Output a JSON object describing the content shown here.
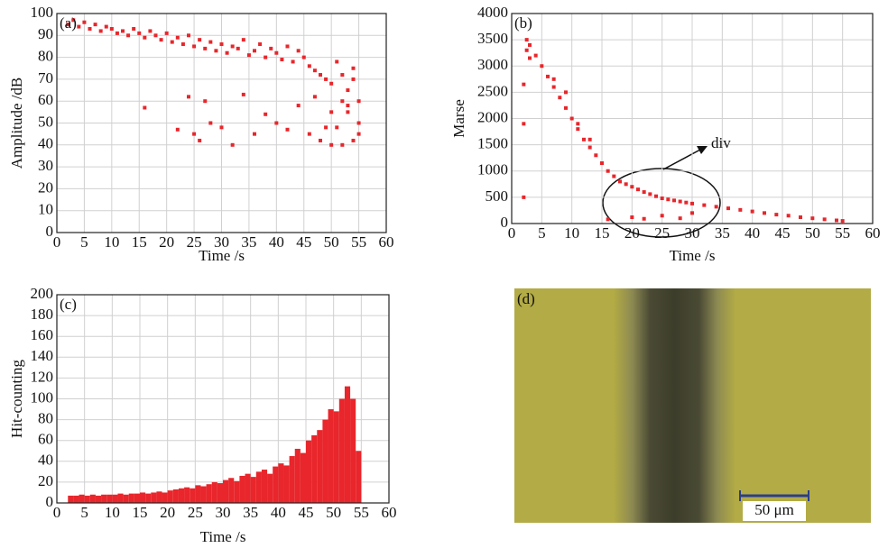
{
  "chart_data": [
    {
      "type": "scatter",
      "panel_label": "(a)",
      "x_label": "Time /s",
      "y_label": "Amplitude /dB",
      "color": "#e8262b",
      "grid": true,
      "x": [
        2,
        3,
        4,
        5,
        6,
        7,
        8,
        9,
        10,
        11,
        12,
        13,
        14,
        15,
        16,
        17,
        18,
        19,
        20,
        21,
        22,
        23,
        24,
        25,
        26,
        27,
        28,
        29,
        30,
        31,
        32,
        33,
        34,
        35,
        36,
        37,
        38,
        39,
        40,
        41,
        42,
        43,
        44,
        45,
        46,
        47,
        48,
        49,
        50,
        51,
        52,
        53,
        54,
        55,
        16,
        22,
        24,
        25,
        26,
        27,
        28,
        30,
        32,
        34,
        36,
        38,
        40,
        42,
        44,
        46,
        48,
        50,
        51,
        52,
        53,
        54,
        55,
        47,
        49,
        50,
        52,
        53,
        54,
        55
      ],
      "values": [
        95,
        97,
        94,
        96,
        93,
        95,
        92,
        94,
        93,
        91,
        92,
        90,
        93,
        91,
        89,
        92,
        90,
        88,
        91,
        87,
        89,
        86,
        90,
        85,
        88,
        84,
        87,
        83,
        86,
        82,
        85,
        84,
        88,
        81,
        83,
        86,
        80,
        84,
        82,
        79,
        85,
        78,
        83,
        80,
        76,
        74,
        72,
        70,
        68,
        78,
        60,
        55,
        70,
        50,
        57,
        47,
        62,
        45,
        42,
        60,
        50,
        48,
        40,
        63,
        45,
        54,
        50,
        47,
        58,
        45,
        42,
        55,
        48,
        40,
        65,
        42,
        45,
        62,
        48,
        40,
        72,
        58,
        75,
        60
      ],
      "xlim": [
        0,
        60
      ],
      "xticks": [
        0,
        5,
        10,
        15,
        20,
        25,
        30,
        35,
        40,
        45,
        50,
        55,
        60
      ],
      "ylim": [
        0,
        100
      ],
      "yticks": [
        0,
        10,
        20,
        30,
        40,
        50,
        60,
        70,
        80,
        90,
        100
      ]
    },
    {
      "type": "scatter",
      "panel_label": "(b)",
      "x_label": "Time /s",
      "y_label": "Marse",
      "color": "#e8262b",
      "grid": true,
      "annotation": "div",
      "x": [
        2.5,
        3,
        4,
        5,
        6,
        7,
        8,
        9,
        10,
        11,
        12,
        13,
        14,
        15,
        16,
        17,
        18,
        19,
        20,
        21,
        22,
        23,
        24,
        25,
        26,
        27,
        28,
        29,
        30,
        32,
        34,
        36,
        38,
        40,
        42,
        44,
        46,
        48,
        50,
        52,
        54,
        55,
        2,
        2,
        2,
        2.5,
        3,
        16,
        20,
        22,
        25,
        28,
        30,
        7,
        9,
        11,
        13
      ],
      "values": [
        3500,
        3400,
        3200,
        3000,
        2800,
        2600,
        2400,
        2200,
        2000,
        1800,
        1600,
        1450,
        1300,
        1150,
        1000,
        900,
        800,
        750,
        700,
        650,
        600,
        560,
        520,
        480,
        460,
        440,
        420,
        400,
        380,
        350,
        320,
        290,
        260,
        230,
        200,
        170,
        150,
        120,
        100,
        80,
        60,
        50,
        500,
        1900,
        2650,
        3300,
        3150,
        80,
        120,
        90,
        150,
        100,
        200,
        2750,
        2500,
        1900,
        1600
      ],
      "xlim": [
        0,
        60
      ],
      "xticks": [
        0,
        5,
        10,
        15,
        20,
        25,
        30,
        35,
        40,
        45,
        50,
        55,
        60
      ],
      "ylim": [
        0,
        4000
      ],
      "yticks": [
        0,
        500,
        1000,
        1500,
        2000,
        2500,
        3000,
        3500,
        4000
      ]
    },
    {
      "type": "histogram",
      "panel_label": "(c)",
      "x_label": "Time /s",
      "y_label": "Hit-counting",
      "color": "#e8262b",
      "grid": true,
      "bins": [
        2,
        3,
        4,
        5,
        6,
        7,
        8,
        9,
        10,
        11,
        12,
        13,
        14,
        15,
        16,
        17,
        18,
        19,
        20,
        21,
        22,
        23,
        24,
        25,
        26,
        27,
        28,
        29,
        30,
        31,
        32,
        33,
        34,
        35,
        36,
        37,
        38,
        39,
        40,
        41,
        42,
        43,
        44,
        45,
        46,
        47,
        48,
        49,
        50,
        51,
        52,
        53,
        54,
        55
      ],
      "values": [
        7,
        7,
        8,
        7,
        8,
        7,
        8,
        8,
        8,
        9,
        8,
        9,
        9,
        10,
        9,
        10,
        11,
        10,
        12,
        13,
        14,
        15,
        14,
        17,
        16,
        18,
        20,
        19,
        22,
        24,
        21,
        26,
        28,
        25,
        30,
        32,
        28,
        35,
        38,
        36,
        45,
        52,
        48,
        60,
        65,
        70,
        80,
        90,
        88,
        100,
        112,
        100,
        50
      ],
      "xlim": [
        0,
        60
      ],
      "xticks": [
        0,
        5,
        10,
        15,
        20,
        25,
        30,
        35,
        40,
        45,
        50,
        55,
        60
      ],
      "ylim": [
        0,
        200
      ],
      "yticks": [
        0,
        20,
        40,
        60,
        80,
        100,
        120,
        140,
        160,
        180,
        200
      ]
    }
  ],
  "image_panel": {
    "label": "(d)",
    "scale_bar": "50 μm"
  }
}
